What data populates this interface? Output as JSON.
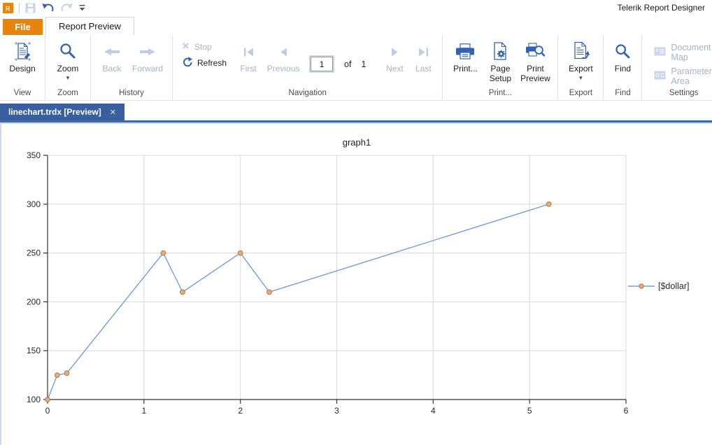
{
  "window": {
    "title": "Telerik Report Designer"
  },
  "quick_access": {
    "icons": [
      "app-logo",
      "save",
      "undo",
      "redo",
      "customize-toolbar"
    ]
  },
  "menu": {
    "file_label": "File",
    "active_tab": "Report Preview"
  },
  "ribbon": {
    "design": "Design",
    "zoom": "Zoom",
    "back": "Back",
    "forward": "Forward",
    "stop": "Stop",
    "refresh": "Refresh",
    "first": "First",
    "previous": "Previous",
    "page_value": "1",
    "of_label": "of",
    "page_count": "1",
    "next": "Next",
    "last": "Last",
    "print": "Print...",
    "page_setup": "Page Setup",
    "print_preview": "Print Preview",
    "export": "Export",
    "find": "Find",
    "document_map": "Document Map",
    "parameter_area": "Parameter Area",
    "groups": {
      "view": "View",
      "zoom": "Zoom",
      "history": "History",
      "navigation": "Navigation",
      "print": "Print...",
      "export": "Export",
      "find": "Find",
      "settings": "Settings"
    }
  },
  "document_tabs": [
    {
      "label": "linechart.trdx [Preview]",
      "close_glyph": "✕",
      "active": true
    }
  ],
  "chart_data": {
    "type": "line",
    "title": "graph1",
    "xlabel": "",
    "ylabel": "",
    "xlim": [
      0,
      6
    ],
    "ylim": [
      100,
      350
    ],
    "x_ticks": [
      0,
      1,
      2,
      3,
      4,
      5,
      6
    ],
    "y_ticks": [
      100,
      150,
      200,
      250,
      300,
      350
    ],
    "grid": true,
    "legend_position": "right",
    "series": [
      {
        "name": "[$dollar]",
        "color": "#71A0D8",
        "marker_fill": "#F0AA6A",
        "marker_stroke": "#96826B",
        "points": [
          [
            0,
            100
          ],
          [
            0.1,
            125
          ],
          [
            0.2,
            127
          ],
          [
            1.2,
            250
          ],
          [
            1.4,
            210
          ],
          [
            2,
            250
          ],
          [
            2.3,
            210
          ],
          [
            5.2,
            300
          ]
        ]
      }
    ]
  },
  "colors": {
    "accent_orange": "#E8830C",
    "doc_tab_blue": "#3A5F9E",
    "icon_blue": "#3463AE",
    "icon_disabled": "#BFCBE5",
    "grid": "#D9D9D9",
    "axis": "#333333"
  }
}
